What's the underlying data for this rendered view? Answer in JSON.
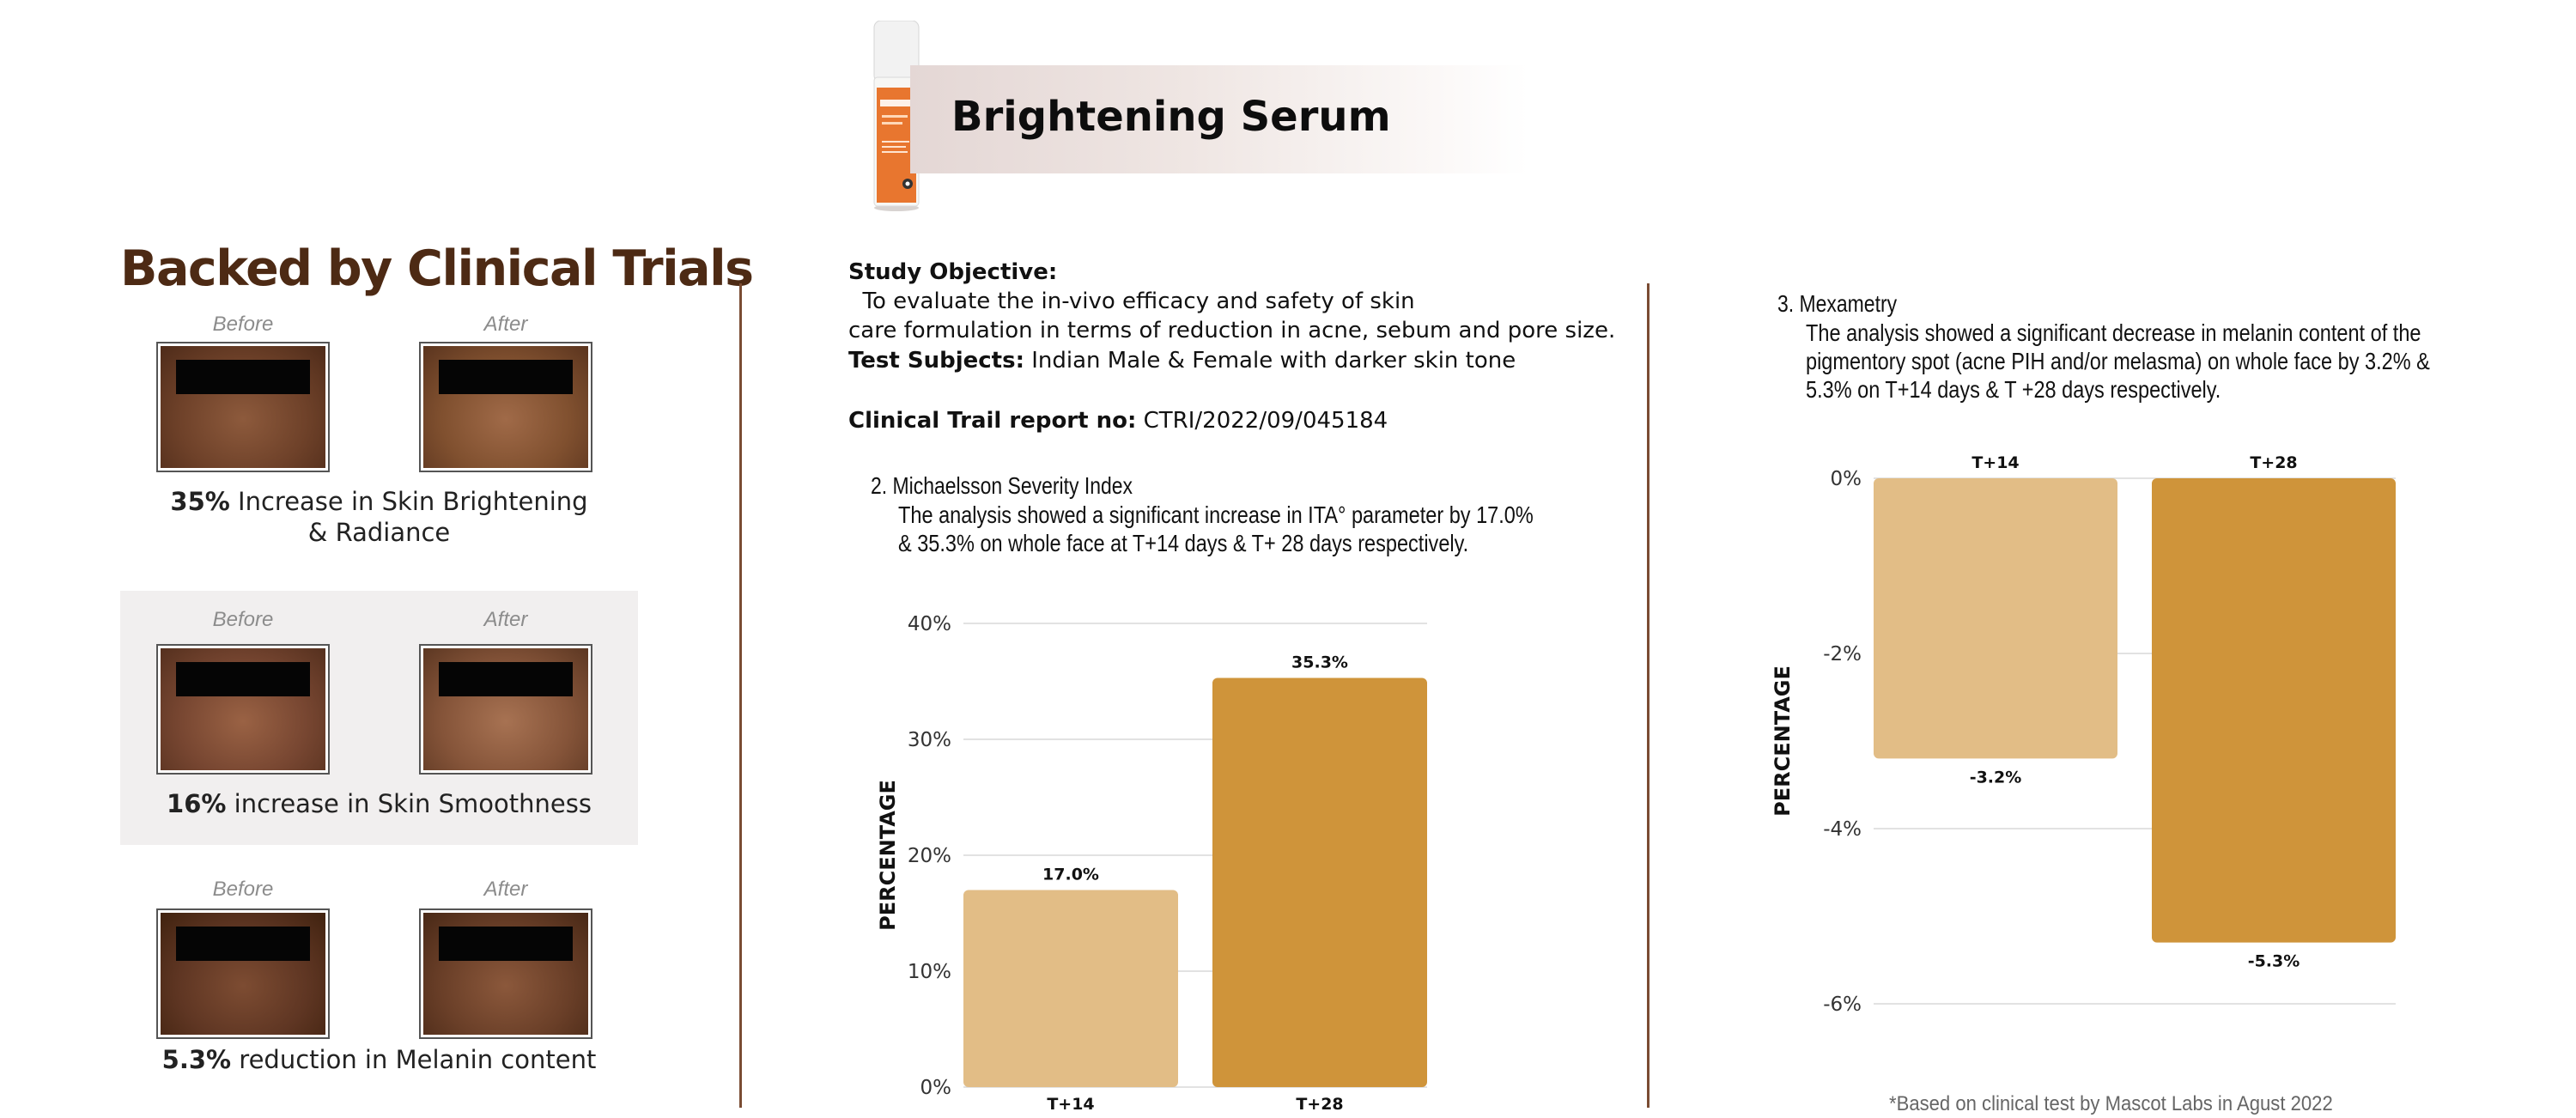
{
  "header": {
    "title": "Brightening Serum",
    "bottle_brand": "skin",
    "bottle_label": "Brightening Serum"
  },
  "left": {
    "heading": "Backed by Clinical Trials",
    "trials": [
      {
        "before": "Before",
        "after": "After",
        "stat_value": "35%",
        "stat_text": " Increase in Skin Brightening",
        "stat_text2": "& Radiance"
      },
      {
        "before": "Before",
        "after": "After",
        "stat_value": "16%",
        "stat_text": " increase in Skin Smoothness"
      },
      {
        "before": "Before",
        "after": "After",
        "stat_value": "5.3%",
        "stat_text": " reduction in Melanin content"
      }
    ]
  },
  "study": {
    "objective_label": "Study Objective:",
    "objective_line1": "  To evaluate the in-vivo efficacy and safety of skin",
    "objective_line2": "care formulation in terms of reduction in acne, sebum and pore size.",
    "subjects_label": "Test Subjects:",
    "subjects_text": " Indian Male & Female with darker skin tone",
    "report_label": "Clinical Trail report no:",
    "report_text": " CTRI/2022/09/045184",
    "section2_heading": "2. Michaelsson Severity Index",
    "section2_line1": "The analysis showed a significant increase in ITA° parameter by 17.0%",
    "section2_line2": "& 35.3% on whole face at T+14 days & T+ 28 days respectively.",
    "section3_heading": "3. Mexametry",
    "section3_line1": "The analysis showed a significant decrease in melanin content of the",
    "section3_line2": "pigmentory spot (acne PIH and/or melasma) on whole face by 3.2% &",
    "section3_line3": "5.3% on T+14 days & T +28 days respectively."
  },
  "colors": {
    "bar_light": "#e2bd86",
    "bar_dark": "#cf943a",
    "heading_brown": "#4d2a14",
    "divider": "#7a4c33"
  },
  "chart_data": [
    {
      "type": "bar",
      "categories": [
        "T+14",
        "T+28"
      ],
      "values": [
        17.0,
        35.3
      ],
      "data_labels": [
        "17.0%",
        "35.3%"
      ],
      "ylabel": "PERCENTAGE",
      "yticks": [
        "0%",
        "10%",
        "20%",
        "30%",
        "40%"
      ],
      "ylim": [
        0,
        40
      ],
      "grid": true,
      "colors": [
        "#e2bd86",
        "#cf943a"
      ]
    },
    {
      "type": "bar",
      "categories": [
        "T+14",
        "T+28"
      ],
      "values": [
        -3.2,
        -5.3
      ],
      "data_labels": [
        "-3.2%",
        "-5.3%"
      ],
      "ylabel": "PERCENTAGE",
      "yticks": [
        "0%",
        "-2%",
        "-4%",
        "-6%"
      ],
      "ylim": [
        -6,
        0
      ],
      "grid": true,
      "category_labels_position": "top",
      "colors": [
        "#e2bd86",
        "#cf943a"
      ]
    }
  ],
  "footnote": "*Based on clinical test by Mascot Labs in Agust 2022"
}
